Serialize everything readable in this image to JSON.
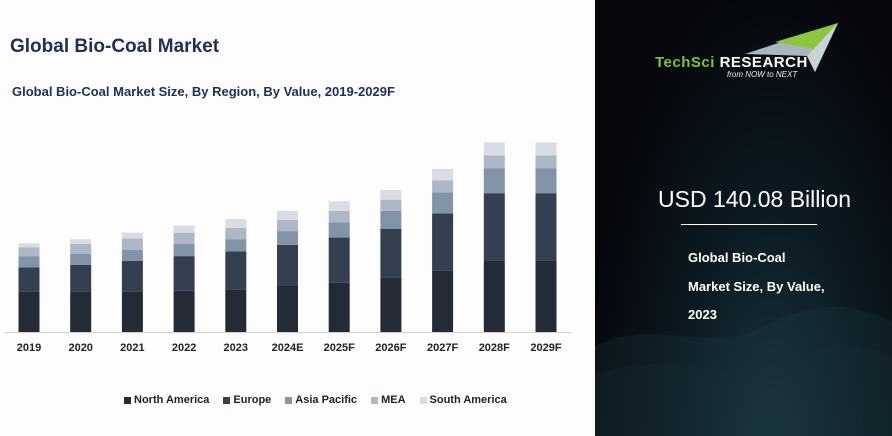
{
  "title": "Global Bio-Coal Market",
  "subtitle": "Global Bio-Coal Market Size, By Region, By Value, 2019-2029F",
  "chart_data": {
    "type": "bar",
    "stacked": true,
    "title": "Global Bio-Coal Market Size, By Region, By Value, 2019-2029F",
    "xlabel": "",
    "ylabel": "",
    "y_axis_visible": false,
    "grid": false,
    "legend_position": "bottom",
    "categories": [
      "2019",
      "2020",
      "2021",
      "2022",
      "2023",
      "2024E",
      "2025F",
      "2026F",
      "2027F",
      "2028F",
      "2029F"
    ],
    "series": [
      {
        "name": "North America",
        "color": "#232b36",
        "values": [
          50,
          50,
          50,
          51,
          53,
          57,
          61,
          67,
          76,
          88,
          88
        ]
      },
      {
        "name": "Europe",
        "color": "#343f4f",
        "values": [
          30,
          33,
          38,
          43,
          47,
          51,
          56,
          61,
          71,
          84,
          84
        ]
      },
      {
        "name": "Asia Pacific",
        "color": "#8393a8",
        "values": [
          14,
          14,
          14,
          15,
          15,
          17,
          19,
          22,
          26,
          31,
          31
        ]
      },
      {
        "name": "MEA",
        "color": "#aeb7c6",
        "values": [
          11,
          12,
          14,
          14,
          14,
          14,
          14,
          14,
          15,
          16,
          16
        ]
      },
      {
        "name": "South America",
        "color": "#d8dce4",
        "values": [
          5,
          6,
          7,
          9,
          11,
          11,
          12,
          12,
          14,
          16,
          16
        ]
      }
    ]
  },
  "panel": {
    "logo_text_green": "TechSci",
    "logo_text_white": "Research",
    "logo_tagline": "from NOW to NEXT",
    "value": "USD 140.08 Billion",
    "description": "Global Bio-Coal Market Size, By Value, 2023",
    "accent_color": "#7dc242"
  }
}
